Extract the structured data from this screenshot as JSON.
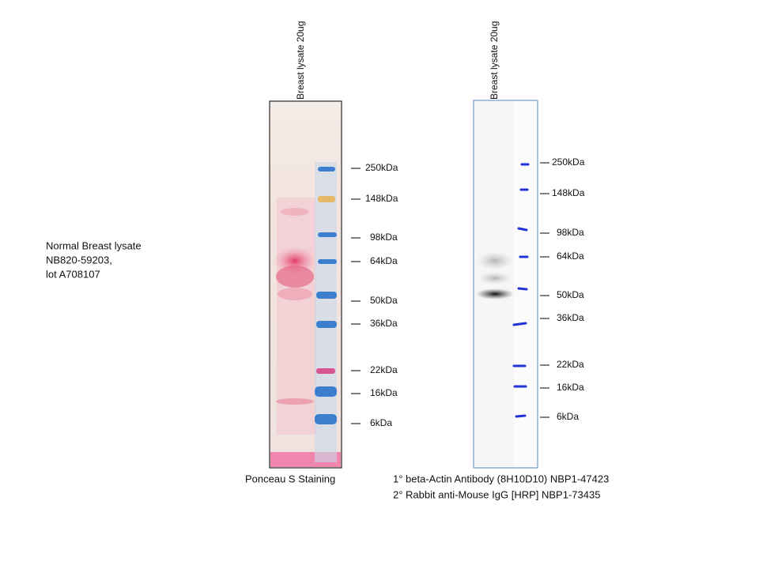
{
  "side_label": {
    "lines": [
      "Normal  Breast lysate",
      "NB820-59203,",
      "lot A708107"
    ]
  },
  "panels": [
    {
      "lane_label": "Breast lysate 20ug",
      "markers": [
        "250kDa",
        "148kDa",
        "98kDa",
        "64kDa",
        "50kDa",
        "36kDa",
        "22kDa",
        "16kDa",
        "6kDa"
      ],
      "caption_lines": [
        "Ponceau S Staining"
      ]
    },
    {
      "lane_label": "Breast lysate 20ug",
      "markers": [
        "250kDa",
        "148kDa",
        "98kDa",
        "64kDa",
        "50kDa",
        "36kDa",
        "22kDa",
        "16kDa",
        "6kDa"
      ],
      "caption_lines": [
        "1° beta-Actin Antibody (8H10D10) NBP1-47423",
        "2° Rabbit anti-Mouse IgG [HRP] NBP1-73435"
      ]
    }
  ]
}
